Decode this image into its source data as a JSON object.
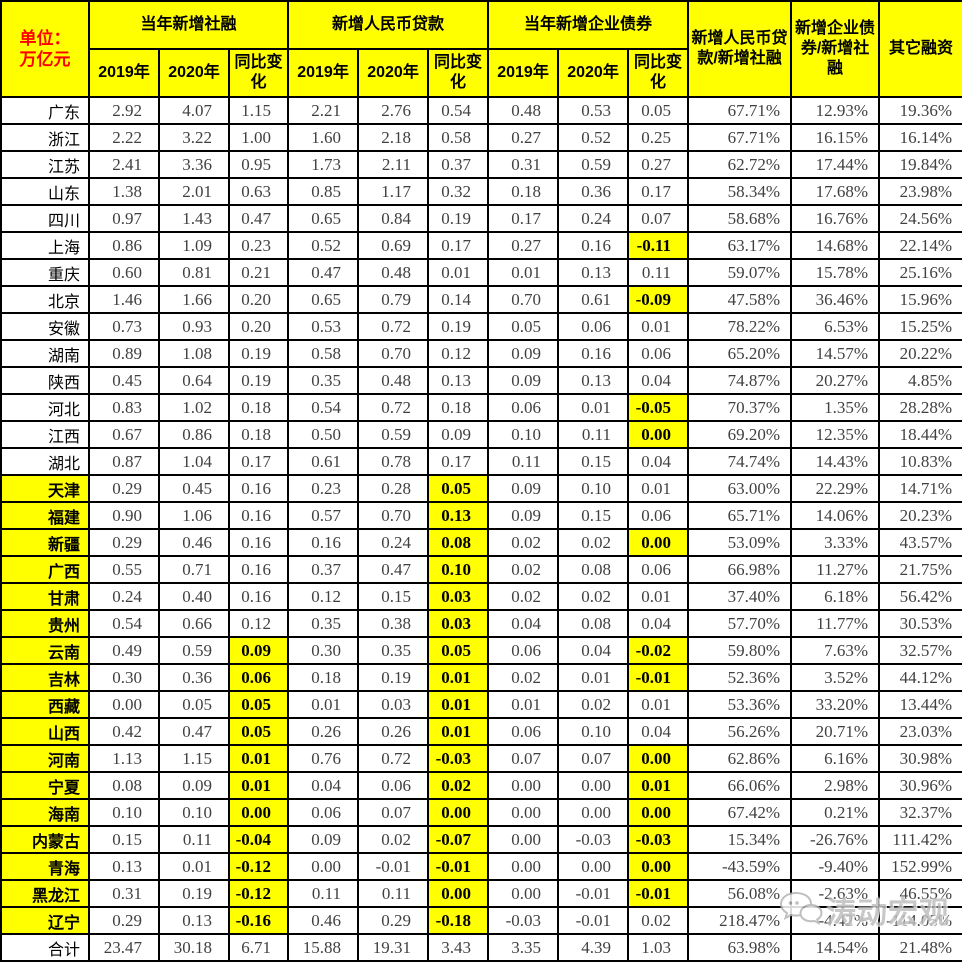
{
  "unit": [
    "单位：",
    "万亿元"
  ],
  "column_groups": [
    "当年新增社融",
    "新增人民币贷款",
    "当年新增企业债券"
  ],
  "subheaders": [
    "2019年",
    "2020年",
    "同比变化"
  ],
  "ratio_headers": [
    "新增人民币贷款/新增社融",
    "新增企业债券/新增社融",
    "其它融资"
  ],
  "colors": {
    "header_bg": "#FFFF00",
    "highlight_bg": "#FFFF00",
    "unit_text": "#FF0000",
    "border": "#000000",
    "number_text": "#404040"
  },
  "watermark": {
    "icon": "wechat-chat-bubbles-icon",
    "text": "涛动宏观"
  },
  "rows": [
    {
      "n": "广东",
      "nh": false,
      "h": [],
      "v": [
        "2.92",
        "4.07",
        "1.15",
        "2.21",
        "2.76",
        "0.54",
        "0.48",
        "0.53",
        "0.05",
        "67.71%",
        "12.93%",
        "19.36%"
      ]
    },
    {
      "n": "浙江",
      "nh": false,
      "h": [],
      "v": [
        "2.22",
        "3.22",
        "1.00",
        "1.60",
        "2.18",
        "0.58",
        "0.27",
        "0.52",
        "0.25",
        "67.71%",
        "16.15%",
        "16.14%"
      ]
    },
    {
      "n": "江苏",
      "nh": false,
      "h": [],
      "v": [
        "2.41",
        "3.36",
        "0.95",
        "1.73",
        "2.11",
        "0.37",
        "0.31",
        "0.59",
        "0.27",
        "62.72%",
        "17.44%",
        "19.84%"
      ]
    },
    {
      "n": "山东",
      "nh": false,
      "h": [],
      "v": [
        "1.38",
        "2.01",
        "0.63",
        "0.85",
        "1.17",
        "0.32",
        "0.18",
        "0.36",
        "0.17",
        "58.34%",
        "17.68%",
        "23.98%"
      ]
    },
    {
      "n": "四川",
      "nh": false,
      "h": [],
      "v": [
        "0.97",
        "1.43",
        "0.47",
        "0.65",
        "0.84",
        "0.19",
        "0.17",
        "0.24",
        "0.07",
        "58.68%",
        "16.76%",
        "24.56%"
      ]
    },
    {
      "n": "上海",
      "nh": false,
      "h": [
        8
      ],
      "v": [
        "0.86",
        "1.09",
        "0.23",
        "0.52",
        "0.69",
        "0.17",
        "0.27",
        "0.16",
        "-0.11",
        "63.17%",
        "14.68%",
        "22.14%"
      ]
    },
    {
      "n": "重庆",
      "nh": false,
      "h": [],
      "v": [
        "0.60",
        "0.81",
        "0.21",
        "0.47",
        "0.48",
        "0.01",
        "0.01",
        "0.13",
        "0.11",
        "59.07%",
        "15.78%",
        "25.16%"
      ]
    },
    {
      "n": "北京",
      "nh": false,
      "h": [
        8
      ],
      "v": [
        "1.46",
        "1.66",
        "0.20",
        "0.65",
        "0.79",
        "0.14",
        "0.70",
        "0.61",
        "-0.09",
        "47.58%",
        "36.46%",
        "15.96%"
      ]
    },
    {
      "n": "安徽",
      "nh": false,
      "h": [],
      "v": [
        "0.73",
        "0.93",
        "0.20",
        "0.53",
        "0.72",
        "0.19",
        "0.05",
        "0.06",
        "0.01",
        "78.22%",
        "6.53%",
        "15.25%"
      ]
    },
    {
      "n": "湖南",
      "nh": false,
      "h": [],
      "v": [
        "0.89",
        "1.08",
        "0.19",
        "0.58",
        "0.70",
        "0.12",
        "0.09",
        "0.16",
        "0.06",
        "65.20%",
        "14.57%",
        "20.22%"
      ]
    },
    {
      "n": "陕西",
      "nh": false,
      "h": [],
      "v": [
        "0.45",
        "0.64",
        "0.19",
        "0.35",
        "0.48",
        "0.13",
        "0.09",
        "0.13",
        "0.04",
        "74.87%",
        "20.27%",
        "4.85%"
      ]
    },
    {
      "n": "河北",
      "nh": false,
      "h": [
        8
      ],
      "v": [
        "0.83",
        "1.02",
        "0.18",
        "0.54",
        "0.72",
        "0.18",
        "0.06",
        "0.01",
        "-0.05",
        "70.37%",
        "1.35%",
        "28.28%"
      ]
    },
    {
      "n": "江西",
      "nh": false,
      "h": [
        8
      ],
      "v": [
        "0.67",
        "0.86",
        "0.18",
        "0.50",
        "0.59",
        "0.09",
        "0.10",
        "0.11",
        "0.00",
        "69.20%",
        "12.35%",
        "18.44%"
      ]
    },
    {
      "n": "湖北",
      "nh": false,
      "h": [],
      "v": [
        "0.87",
        "1.04",
        "0.17",
        "0.61",
        "0.78",
        "0.17",
        "0.11",
        "0.15",
        "0.04",
        "74.74%",
        "14.43%",
        "10.83%"
      ]
    },
    {
      "n": "天津",
      "nh": true,
      "h": [
        5
      ],
      "v": [
        "0.29",
        "0.45",
        "0.16",
        "0.23",
        "0.28",
        "0.05",
        "0.09",
        "0.10",
        "0.01",
        "63.00%",
        "22.29%",
        "14.71%"
      ]
    },
    {
      "n": "福建",
      "nh": true,
      "h": [
        5
      ],
      "v": [
        "0.90",
        "1.06",
        "0.16",
        "0.57",
        "0.70",
        "0.13",
        "0.09",
        "0.15",
        "0.06",
        "65.71%",
        "14.06%",
        "20.23%"
      ]
    },
    {
      "n": "新疆",
      "nh": true,
      "h": [
        5,
        8
      ],
      "v": [
        "0.29",
        "0.46",
        "0.16",
        "0.16",
        "0.24",
        "0.08",
        "0.02",
        "0.02",
        "0.00",
        "53.09%",
        "3.33%",
        "43.57%"
      ]
    },
    {
      "n": "广西",
      "nh": true,
      "h": [
        5
      ],
      "v": [
        "0.55",
        "0.71",
        "0.16",
        "0.37",
        "0.47",
        "0.10",
        "0.02",
        "0.08",
        "0.06",
        "66.98%",
        "11.27%",
        "21.75%"
      ]
    },
    {
      "n": "甘肃",
      "nh": true,
      "h": [
        5
      ],
      "v": [
        "0.24",
        "0.40",
        "0.16",
        "0.12",
        "0.15",
        "0.03",
        "0.02",
        "0.02",
        "0.01",
        "37.40%",
        "6.18%",
        "56.42%"
      ]
    },
    {
      "n": "贵州",
      "nh": true,
      "h": [
        5
      ],
      "v": [
        "0.54",
        "0.66",
        "0.12",
        "0.35",
        "0.38",
        "0.03",
        "0.04",
        "0.08",
        "0.04",
        "57.70%",
        "11.77%",
        "30.53%"
      ]
    },
    {
      "n": "云南",
      "nh": true,
      "h": [
        2,
        5,
        8
      ],
      "v": [
        "0.49",
        "0.59",
        "0.09",
        "0.30",
        "0.35",
        "0.05",
        "0.06",
        "0.04",
        "-0.02",
        "59.80%",
        "7.63%",
        "32.57%"
      ]
    },
    {
      "n": "吉林",
      "nh": true,
      "h": [
        2,
        5,
        8
      ],
      "v": [
        "0.30",
        "0.36",
        "0.06",
        "0.18",
        "0.19",
        "0.01",
        "0.02",
        "0.01",
        "-0.01",
        "52.36%",
        "3.52%",
        "44.12%"
      ]
    },
    {
      "n": "西藏",
      "nh": true,
      "h": [
        2,
        5
      ],
      "v": [
        "0.00",
        "0.05",
        "0.05",
        "0.01",
        "0.03",
        "0.01",
        "0.01",
        "0.02",
        "0.01",
        "53.36%",
        "33.20%",
        "13.44%"
      ]
    },
    {
      "n": "山西",
      "nh": true,
      "h": [
        2,
        5
      ],
      "v": [
        "0.42",
        "0.47",
        "0.05",
        "0.26",
        "0.26",
        "0.01",
        "0.06",
        "0.10",
        "0.04",
        "56.26%",
        "20.71%",
        "23.03%"
      ]
    },
    {
      "n": "河南",
      "nh": true,
      "h": [
        2,
        5,
        8
      ],
      "v": [
        "1.13",
        "1.15",
        "0.01",
        "0.76",
        "0.72",
        "-0.03",
        "0.07",
        "0.07",
        "0.00",
        "62.86%",
        "6.16%",
        "30.98%"
      ]
    },
    {
      "n": "宁夏",
      "nh": true,
      "h": [
        2,
        5,
        8
      ],
      "v": [
        "0.08",
        "0.09",
        "0.01",
        "0.04",
        "0.06",
        "0.02",
        "0.00",
        "0.00",
        "0.01",
        "66.06%",
        "2.98%",
        "30.96%"
      ]
    },
    {
      "n": "海南",
      "nh": true,
      "h": [
        2,
        5,
        8
      ],
      "v": [
        "0.10",
        "0.10",
        "0.00",
        "0.06",
        "0.07",
        "0.00",
        "0.00",
        "0.00",
        "0.00",
        "67.42%",
        "0.21%",
        "32.37%"
      ]
    },
    {
      "n": "内蒙古",
      "nh": true,
      "h": [
        2,
        5,
        8
      ],
      "v": [
        "0.15",
        "0.11",
        "-0.04",
        "0.09",
        "0.02",
        "-0.07",
        "0.00",
        "-0.03",
        "-0.03",
        "15.34%",
        "-26.76%",
        "111.42%"
      ]
    },
    {
      "n": "青海",
      "nh": true,
      "h": [
        2,
        5,
        8
      ],
      "v": [
        "0.13",
        "0.01",
        "-0.12",
        "0.00",
        "-0.01",
        "-0.01",
        "0.00",
        "0.00",
        "0.00",
        "-43.59%",
        "-9.40%",
        "152.99%"
      ]
    },
    {
      "n": "黑龙江",
      "nh": true,
      "h": [
        2,
        5,
        8
      ],
      "v": [
        "0.31",
        "0.19",
        "-0.12",
        "0.11",
        "0.11",
        "0.00",
        "0.00",
        "-0.01",
        "-0.01",
        "56.08%",
        "-2.63%",
        "46.55%"
      ]
    },
    {
      "n": "辽宁",
      "nh": true,
      "h": [
        2,
        5
      ],
      "v": [
        "0.29",
        "0.13",
        "-0.16",
        "0.46",
        "0.29",
        "-0.18",
        "-0.03",
        "-0.01",
        "0.02",
        "218.47%",
        "-4.42%",
        "-114.05%"
      ]
    },
    {
      "n": "合计",
      "nh": false,
      "h": [],
      "v": [
        "23.47",
        "30.18",
        "6.71",
        "15.88",
        "19.31",
        "3.43",
        "3.35",
        "4.39",
        "1.03",
        "63.98%",
        "14.54%",
        "21.48%"
      ]
    }
  ]
}
